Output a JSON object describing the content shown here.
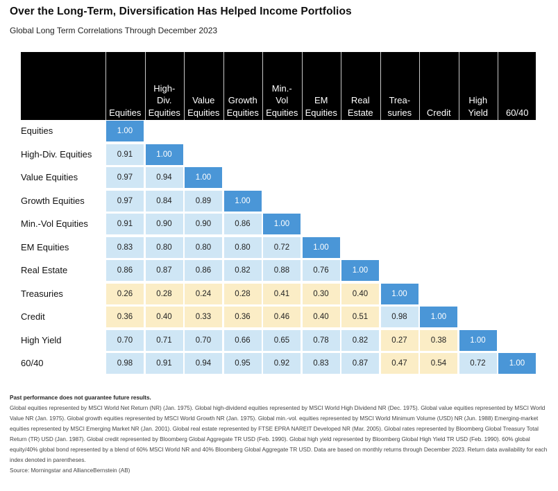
{
  "header": {
    "title": "Over the Long-Term, Diversification Has Helped Income Portfolios",
    "subtitle": "Global Long Term Correlations Through December 2023"
  },
  "chart_data": {
    "type": "heatmap",
    "title": "Over the Long-Term, Diversification Has Helped Income Portfolios",
    "subtitle": "Global Long Term Correlations Through December 2023",
    "columns": [
      "Equities",
      "High-\nDiv.\nEquities",
      "Value\nEquities",
      "Growth\nEquities",
      "Min.-\nVol\nEquities",
      "EM\nEquities",
      "Real\nEstate",
      "Trea-\nsuries",
      "Credit",
      "High\nYield",
      "60/40"
    ],
    "rows": [
      "Equities",
      "High-Div. Equities",
      "Value Equities",
      "Growth Equities",
      "Min.-Vol Equities",
      "EM Equities",
      "Real Estate",
      "Treasuries",
      "Credit",
      "High Yield",
      "60/40"
    ],
    "values": [
      [
        "1.00"
      ],
      [
        "0.91",
        "1.00"
      ],
      [
        "0.97",
        "0.94",
        "1.00"
      ],
      [
        "0.97",
        "0.84",
        "0.89",
        "1.00"
      ],
      [
        "0.91",
        "0.90",
        "0.90",
        "0.86",
        "1.00"
      ],
      [
        "0.83",
        "0.80",
        "0.80",
        "0.80",
        "0.72",
        "1.00"
      ],
      [
        "0.86",
        "0.87",
        "0.86",
        "0.82",
        "0.88",
        "0.76",
        "1.00"
      ],
      [
        "0.26",
        "0.28",
        "0.24",
        "0.28",
        "0.41",
        "0.30",
        "0.40",
        "1.00"
      ],
      [
        "0.36",
        "0.40",
        "0.33",
        "0.36",
        "0.46",
        "0.40",
        "0.51",
        "0.98",
        "1.00"
      ],
      [
        "0.70",
        "0.71",
        "0.70",
        "0.66",
        "0.65",
        "0.78",
        "0.82",
        "0.27",
        "0.38",
        "1.00"
      ],
      [
        "0.98",
        "0.91",
        "0.94",
        "0.95",
        "0.92",
        "0.83",
        "0.87",
        "0.47",
        "0.54",
        "0.72",
        "1.00"
      ]
    ],
    "colors": {
      "diagonal": "#4a96d7",
      "high_correlation": "#cfe6f5",
      "low_correlation": "#fbedc6",
      "header_background": "#000000"
    }
  },
  "footnotes": {
    "disclaimer": "Past performance does not guarantee future results.",
    "body": "Global equities represented by MSCI World Net Return (NR) (Jan. 1975). Global high-dividend equities represented by MSCI World High Dividend NR (Dec. 1975). Global value equities represented by MSCI World Value NR (Jan. 1975). Global growth equities represented by MSCI World Growth NR (Jan. 1975). Global min.-vol. equities represented by MSCI World Minimum Volume (USD) NR (Jun. 1988) Emerging-market equities represented by MSCI Emerging Market NR (Jan. 2001). Global real estate represented by FTSE EPRA NAREIT Developed NR (Mar. 2005). Global rates represented by Bloomberg Global Treasury Total Return (TR) USD (Jan. 1987). Global credit represented by Bloomberg Global Aggregate TR USD (Feb. 1990). Global high yield represented by Bloomberg Global High Yield TR USD (Feb. 1990). 60% global equity/40% global bond represented by a blend of 60% MSCI World NR and 40% Bloomberg Global Aggregate TR USD. Data are based on monthly returns through December 2023. Return data availability for each index denoted in parentheses.",
    "source": "Source: Morningstar and AllianceBernstein (AB)"
  }
}
